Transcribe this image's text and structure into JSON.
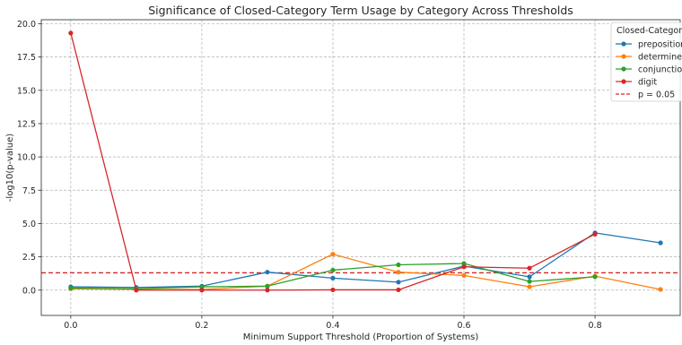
{
  "chart_data": {
    "type": "line",
    "title": "Significance of Closed-Category Term Usage by Category Across Thresholds",
    "xlabel": "Minimum Support Threshold (Proportion of Systems)",
    "ylabel": "-log10(p-value)",
    "xlim": [
      -0.045,
      0.93
    ],
    "ylim": [
      -1.9,
      20.3
    ],
    "x_ticks": [
      0.0,
      0.2,
      0.4,
      0.6,
      0.8
    ],
    "x_tick_labels": [
      "0.0",
      "0.2",
      "0.4",
      "0.6",
      "0.8"
    ],
    "y_ticks": [
      0.0,
      2.5,
      5.0,
      7.5,
      10.0,
      12.5,
      15.0,
      17.5,
      20.0
    ],
    "y_tick_labels": [
      "0.0",
      "2.5",
      "5.0",
      "7.5",
      "10.0",
      "12.5",
      "15.0",
      "17.5",
      "20.0"
    ],
    "grid": true,
    "legend": {
      "title": "Closed-Category",
      "placement": "top-right",
      "threshold_label": "p = 0.05"
    },
    "threshold": {
      "value": 1.301,
      "color": "#d62728",
      "label": "p = 0.05"
    },
    "series": [
      {
        "name": "preposition",
        "color": "#1f77b4",
        "x": [
          0.0,
          0.1,
          0.2,
          0.3,
          0.4,
          0.5,
          0.6,
          0.7,
          0.8,
          0.9
        ],
        "values": [
          0.25,
          0.2,
          0.3,
          1.35,
          0.9,
          0.6,
          1.8,
          1.0,
          4.3,
          3.55
        ]
      },
      {
        "name": "determiner",
        "color": "#ff7f0e",
        "x": [
          0.0,
          0.1,
          0.2,
          0.3,
          0.4,
          0.5,
          0.6,
          0.7,
          0.8,
          0.9
        ],
        "values": [
          0.1,
          0.05,
          0.05,
          0.3,
          2.7,
          1.35,
          1.1,
          0.25,
          1.05,
          0.05
        ]
      },
      {
        "name": "conjunction",
        "color": "#2ca02c",
        "x": [
          0.0,
          0.1,
          0.2,
          0.3,
          0.4,
          0.5,
          0.6,
          0.7,
          0.8
        ],
        "values": [
          0.15,
          0.1,
          0.25,
          0.3,
          1.5,
          1.9,
          2.0,
          0.65,
          1.0
        ]
      },
      {
        "name": "digit",
        "color": "#d62728",
        "x": [
          0.0,
          0.1,
          0.2,
          0.3,
          0.4,
          0.5,
          0.6,
          0.7,
          0.8
        ],
        "values": [
          19.3,
          0.0,
          0.0,
          0.0,
          0.02,
          0.02,
          1.75,
          1.65,
          4.2
        ]
      }
    ]
  }
}
